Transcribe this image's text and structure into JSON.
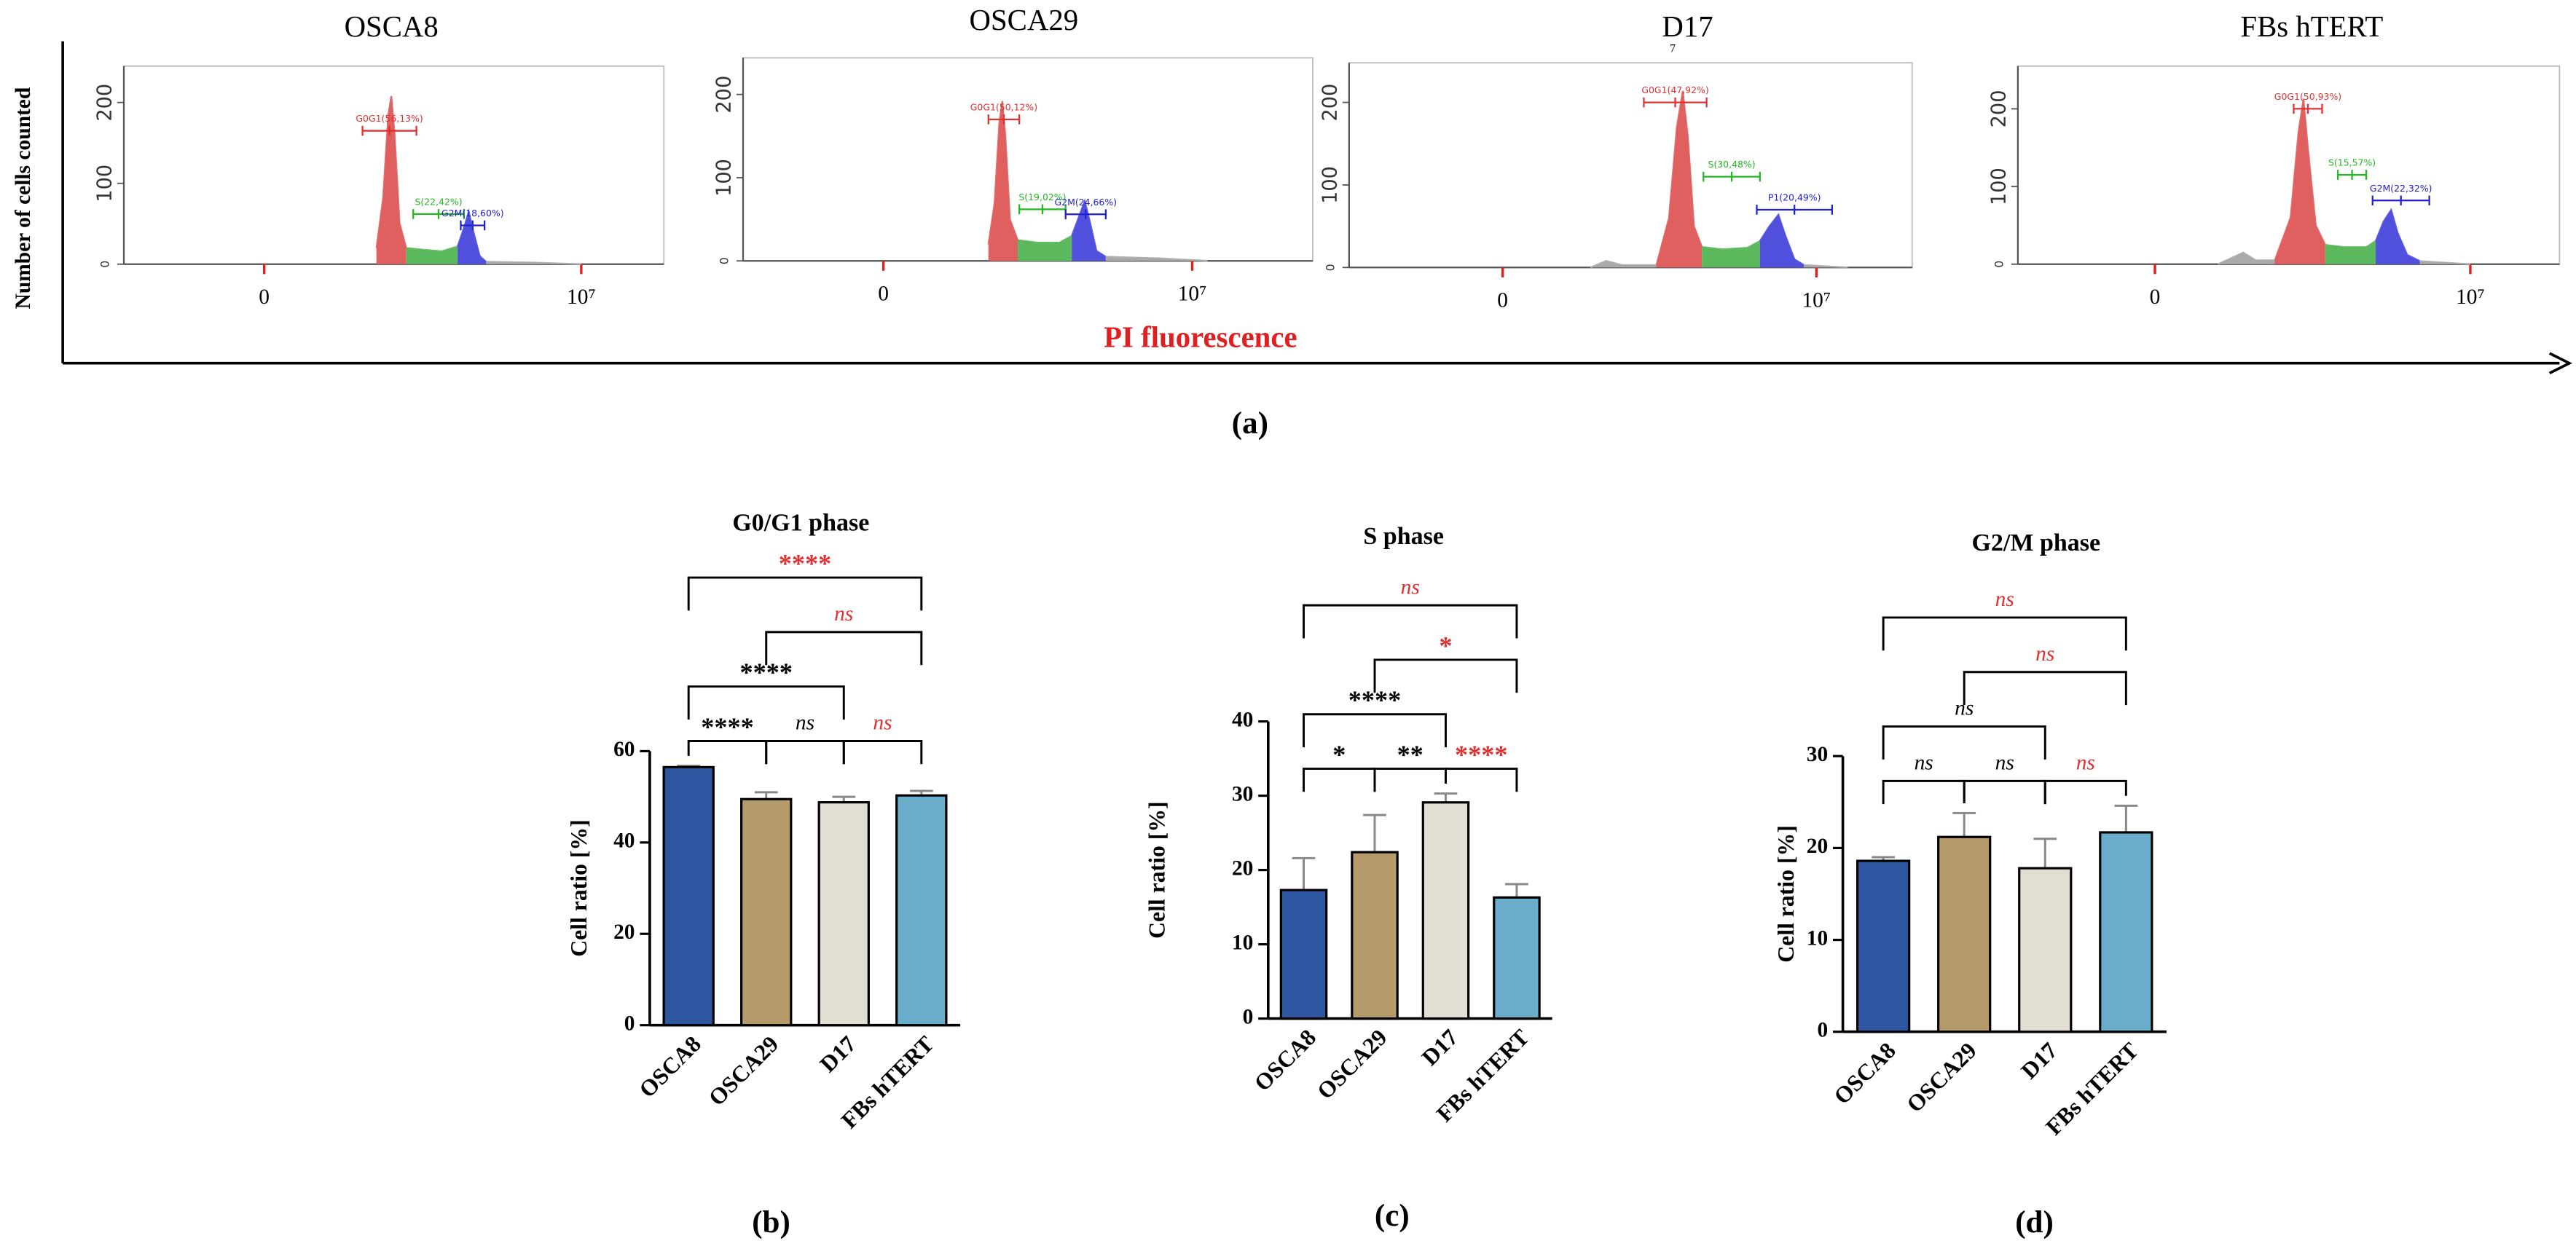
{
  "figure": {
    "y_label": "Number of cells counted",
    "x_label": "PI fluorescence",
    "panel_labels": [
      "(a)",
      "(b)",
      "(c)",
      "(d)"
    ]
  },
  "chart_data": [
    {
      "type": "flow",
      "title": "OSCA8",
      "xlim": [
        -4427000,
        12604000
      ],
      "xticks": [
        0,
        {
          "value": 10000000,
          "label": "10⁷"
        }
      ],
      "ylim": [
        0,
        245
      ],
      "yticks": [
        0,
        100,
        200
      ],
      "series": [
        {
          "color": "#e06060",
          "x": [
            3540000,
            3750000,
            3910000,
            4010000,
            4110000,
            4270000,
            4480000
          ],
          "values": [
            20,
            82,
            184,
            208,
            163,
            51,
            20
          ]
        },
        {
          "color": "#5cb85c",
          "x": [
            4480000,
            5000000,
            5600000,
            6100000
          ],
          "values": [
            20,
            18,
            16,
            22
          ]
        },
        {
          "color": "#5050dd",
          "x": [
            6100000,
            6300000,
            6450000,
            6600000,
            6800000,
            7000000
          ],
          "values": [
            22,
            45,
            65,
            40,
            10,
            3
          ]
        },
        {
          "color": "#aaaaaa",
          "x": [
            7000000,
            8500000,
            10000000
          ],
          "values": [
            3,
            2,
            0
          ]
        }
      ],
      "gates": [
        {
          "label": "G0G1(56,13%)",
          "x": [
            3100000,
            4800000
          ],
          "y": 165,
          "color": "#e03030"
        },
        {
          "label": "S(22,42%)",
          "x": [
            4700000,
            6300000
          ],
          "y": 62,
          "color": "#22b822"
        },
        {
          "label": "G2M(18,60%)",
          "x": [
            6200000,
            6950000
          ],
          "y": 48,
          "color": "#2020d0"
        }
      ]
    },
    {
      "type": "flow",
      "title": "OSCA29",
      "xlim": [
        -4545000,
        13904000
      ],
      "xticks": [
        0,
        {
          "value": 10000000,
          "label": "10⁷"
        }
      ],
      "ylim": [
        0,
        244
      ],
      "yticks": [
        0,
        100,
        200
      ],
      "series": [
        {
          "color": "#e06060",
          "x": [
            3400000,
            3600000,
            3750000,
            3850000,
            3950000,
            4100000,
            4350000
          ],
          "values": [
            20,
            70,
            165,
            192,
            150,
            50,
            25
          ]
        },
        {
          "color": "#5cb85c",
          "x": [
            4350000,
            5000000,
            5700000,
            6100000
          ],
          "values": [
            25,
            22,
            22,
            30
          ]
        },
        {
          "color": "#5050dd",
          "x": [
            6100000,
            6350000,
            6520000,
            6700000,
            6900000,
            7200000
          ],
          "values": [
            30,
            55,
            72,
            45,
            12,
            5
          ]
        },
        {
          "color": "#aaaaaa",
          "x": [
            7200000,
            9000000,
            10500000
          ],
          "values": [
            5,
            3,
            0
          ]
        }
      ],
      "gates": [
        {
          "label": "G0G1(50,12%)",
          "x": [
            3400000,
            4400000
          ],
          "y": 170,
          "color": "#e03030"
        },
        {
          "label": "S(19,02%)",
          "x": [
            4400000,
            5900000
          ],
          "y": 62,
          "color": "#22b822"
        },
        {
          "label": "G2M(24,66%)",
          "x": [
            5900000,
            7200000
          ],
          "y": 56,
          "color": "#2020d0"
        }
      ]
    },
    {
      "type": "flow",
      "title": "D17",
      "annotation": "7",
      "xlim": [
        -4895000,
        13053000
      ],
      "xticks": [
        0,
        {
          "value": 10000000,
          "label": "10⁷"
        }
      ],
      "ylim": [
        0,
        248
      ],
      "yticks": [
        0,
        100,
        200
      ],
      "series": [
        {
          "color": "#aaaaaa",
          "x": [
            2800000,
            3300000,
            3800000,
            4900000
          ],
          "values": [
            0,
            8,
            3,
            3
          ]
        },
        {
          "color": "#e06060",
          "x": [
            4900000,
            5300000,
            5550000,
            5740000,
            5900000,
            6100000,
            6350000
          ],
          "values": [
            3,
            60,
            170,
            214,
            160,
            50,
            25
          ]
        },
        {
          "color": "#5cb85c",
          "x": [
            6350000,
            7000000,
            7800000,
            8200000
          ],
          "values": [
            25,
            22,
            24,
            32
          ]
        },
        {
          "color": "#5050dd",
          "x": [
            8200000,
            8500000,
            8790000,
            9000000,
            9300000,
            9600000
          ],
          "values": [
            32,
            50,
            64,
            40,
            10,
            3
          ]
        },
        {
          "color": "#aaaaaa",
          "x": [
            9600000,
            11000000
          ],
          "values": [
            3,
            0
          ]
        }
      ],
      "gates": [
        {
          "label": "G0G1(47,92%)",
          "x": [
            4500000,
            6500000
          ],
          "y": 200,
          "color": "#e03030"
        },
        {
          "label": "S(30,48%)",
          "x": [
            6400000,
            8200000
          ],
          "y": 110,
          "color": "#22b822"
        },
        {
          "label": "P1(20,49%)",
          "x": [
            8100000,
            10500000
          ],
          "y": 70,
          "color": "#2020d0"
        }
      ]
    },
    {
      "type": "flow",
      "title": "FBs hTERT",
      "xlim": [
        -4346000,
        12827000
      ],
      "xticks": [
        0,
        {
          "value": 10000000,
          "label": "10⁷"
        }
      ],
      "ylim": [
        0,
        255
      ],
      "yticks": [
        0,
        100,
        200
      ],
      "series": [
        {
          "color": "#aaaaaa",
          "x": [
            2000000,
            2800000,
            3200000,
            3800000
          ],
          "values": [
            0,
            15,
            5,
            5
          ]
        },
        {
          "color": "#e06060",
          "x": [
            3800000,
            4300000,
            4550000,
            4710000,
            4850000,
            5100000,
            5400000
          ],
          "values": [
            5,
            60,
            170,
            213,
            150,
            50,
            25
          ]
        },
        {
          "color": "#5cb85c",
          "x": [
            5400000,
            6000000,
            6700000,
            7000000
          ],
          "values": [
            25,
            22,
            22,
            30
          ]
        },
        {
          "color": "#5050dd",
          "x": [
            7000000,
            7250000,
            7490000,
            7700000,
            8000000,
            8400000
          ],
          "values": [
            30,
            55,
            70,
            40,
            12,
            4
          ]
        },
        {
          "color": "#aaaaaa",
          "x": [
            8400000,
            10000000
          ],
          "values": [
            4,
            0
          ]
        }
      ],
      "gates": [
        {
          "label": "G0G1(50,93%)",
          "x": [
            4400000,
            5300000
          ],
          "y": 200,
          "color": "#e03030"
        },
        {
          "label": "S(15,57%)",
          "x": [
            5800000,
            6700000
          ],
          "y": 115,
          "color": "#22b822"
        },
        {
          "label": "G2M(22,32%)",
          "x": [
            6900000,
            8700000
          ],
          "y": 82,
          "color": "#2020d0"
        }
      ]
    },
    {
      "type": "bar",
      "title": "G0/G1 phase",
      "y_label": "Cell ratio [%]",
      "categories": [
        "OSCA8",
        "OSCA29",
        "D17",
        "FBs hTERT"
      ],
      "values": [
        56.5,
        49.5,
        48.8,
        50.3
      ],
      "errors": [
        0.3,
        1.5,
        1.2,
        1.0
      ],
      "colors": [
        "#2e55a0",
        "#b59a6a",
        "#e2ded4",
        "#6aaecb"
      ],
      "ylim": [
        0,
        60
      ],
      "yticks": [
        0,
        20,
        40,
        60
      ],
      "brackets": [
        {
          "pair": [
            0,
            1
          ],
          "label": "****",
          "color": "#000000"
        },
        {
          "pair": [
            1,
            2
          ],
          "label": "ns",
          "color": "#000000"
        },
        {
          "pair": [
            2,
            3
          ],
          "label": "ns",
          "color": "#e03030"
        },
        {
          "pair": [
            0,
            2
          ],
          "label": "****",
          "color": "#000000"
        },
        {
          "pair": [
            1,
            3
          ],
          "label": "ns",
          "color": "#e03030"
        },
        {
          "pair": [
            0,
            3
          ],
          "label": "****",
          "color": "#e03030"
        }
      ]
    },
    {
      "type": "bar",
      "title": "S phase",
      "y_label": "Cell ratio [%]",
      "categories": [
        "OSCA8",
        "OSCA29",
        "D17",
        "FBs hTERT"
      ],
      "values": [
        17.3,
        22.4,
        29.1,
        16.3
      ],
      "errors": [
        4.3,
        5.0,
        1.2,
        1.8
      ],
      "colors": [
        "#2e55a0",
        "#b59a6a",
        "#e2ded4",
        "#6aaecb"
      ],
      "ylim": [
        0,
        40
      ],
      "yticks": [
        0,
        10,
        20,
        30,
        40
      ],
      "brackets": [
        {
          "pair": [
            0,
            1
          ],
          "label": "*",
          "color": "#000000"
        },
        {
          "pair": [
            1,
            2
          ],
          "label": "**",
          "color": "#000000"
        },
        {
          "pair": [
            2,
            3
          ],
          "label": "****",
          "color": "#e03030"
        },
        {
          "pair": [
            0,
            2
          ],
          "label": "****",
          "color": "#000000"
        },
        {
          "pair": [
            1,
            3
          ],
          "label": "*",
          "color": "#e03030"
        },
        {
          "pair": [
            0,
            3
          ],
          "label": "ns",
          "color": "#e03030"
        }
      ]
    },
    {
      "type": "bar",
      "title": "G2/M phase",
      "y_label": "Cell ratio [%]",
      "categories": [
        "OSCA8",
        "OSCA29",
        "D17",
        "FBs hTERT"
      ],
      "values": [
        18.6,
        21.2,
        17.8,
        21.7
      ],
      "errors": [
        0.4,
        2.6,
        3.2,
        2.9
      ],
      "colors": [
        "#2e55a0",
        "#b59a6a",
        "#e2ded4",
        "#6aaecb"
      ],
      "ylim": [
        0,
        30
      ],
      "yticks": [
        0,
        10,
        20,
        30
      ],
      "brackets": [
        {
          "pair": [
            0,
            1
          ],
          "label": "ns",
          "color": "#000000"
        },
        {
          "pair": [
            1,
            2
          ],
          "label": "ns",
          "color": "#000000"
        },
        {
          "pair": [
            2,
            3
          ],
          "label": "ns",
          "color": "#e03030"
        },
        {
          "pair": [
            0,
            2
          ],
          "label": "ns",
          "color": "#000000"
        },
        {
          "pair": [
            1,
            3
          ],
          "label": "ns",
          "color": "#e03030"
        },
        {
          "pair": [
            0,
            3
          ],
          "label": "ns",
          "color": "#e03030"
        }
      ]
    }
  ]
}
